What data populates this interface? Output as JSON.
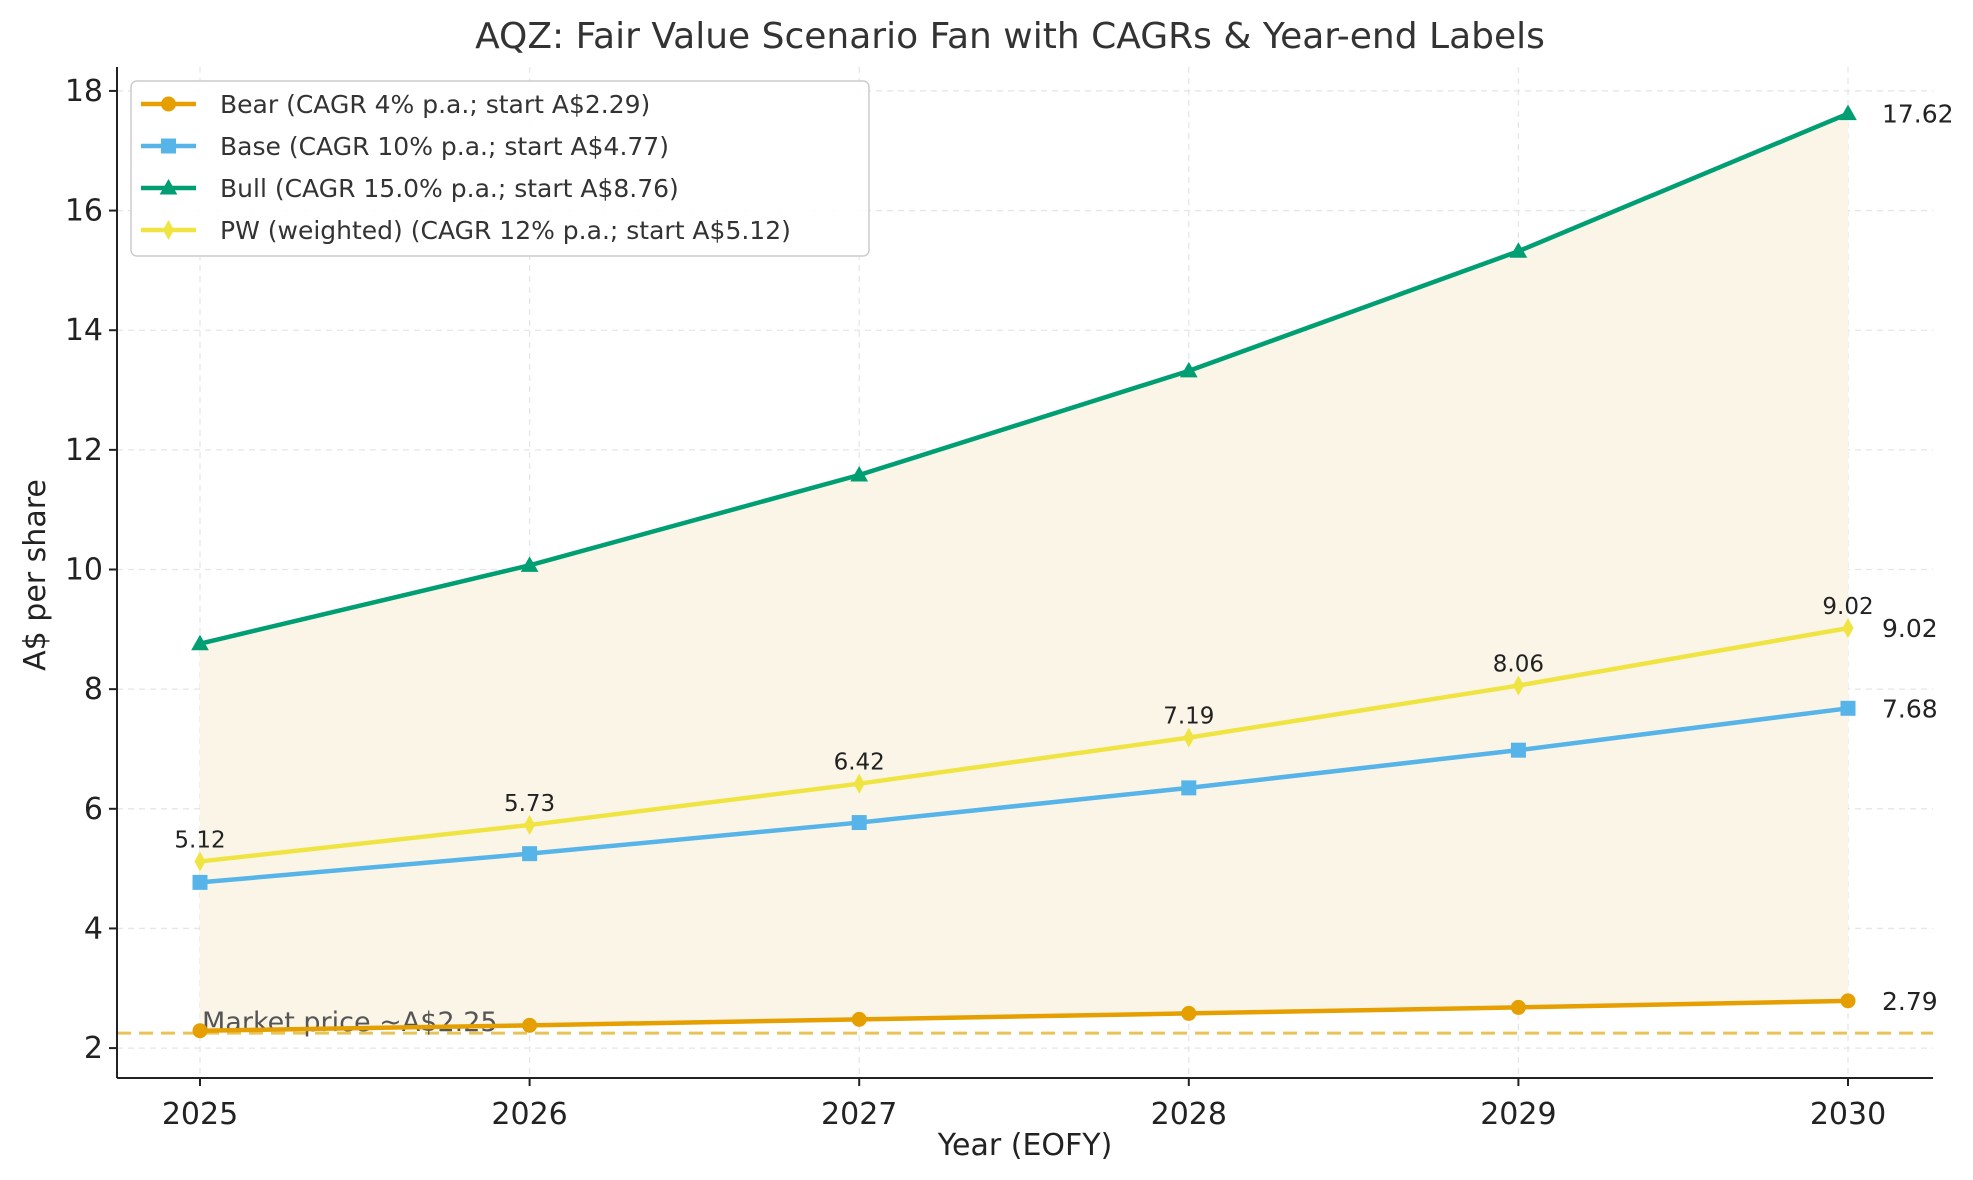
{
  "chart_data": {
    "type": "line",
    "title": "AQZ: Fair Value Scenario Fan with CAGRs & Year-end Labels",
    "xlabel": "Year (EOFY)",
    "ylabel": "A$ per share",
    "x": [
      2025,
      2026,
      2027,
      2028,
      2029,
      2030
    ],
    "x_tick_labels": [
      "2025",
      "2026",
      "2027",
      "2028",
      "2029",
      "2030"
    ],
    "ylim": [
      1.5,
      18.4
    ],
    "y_ticks": [
      2,
      4,
      6,
      8,
      10,
      12,
      14,
      16,
      18
    ],
    "y_tick_labels": [
      "2",
      "4",
      "6",
      "8",
      "10",
      "12",
      "14",
      "16",
      "18"
    ],
    "grid": true,
    "legend_position": "top-left",
    "series": [
      {
        "name": "Bear (CAGR 4% p.a.; start A$2.29)",
        "key": "bear",
        "color": "#E69F00",
        "marker": "circle",
        "values": [
          2.29,
          2.38,
          2.48,
          2.58,
          2.68,
          2.79
        ],
        "end_label": "2.79"
      },
      {
        "name": "Base (CAGR 10% p.a.; start A$4.77)",
        "key": "base",
        "color": "#56B4E9",
        "marker": "square",
        "values": [
          4.77,
          5.25,
          5.77,
          6.35,
          6.98,
          7.68
        ],
        "end_label": "7.68"
      },
      {
        "name": "Bull (CAGR 15.0% p.a.; start A$8.76)",
        "key": "bull",
        "color": "#009E73",
        "marker": "triangle",
        "values": [
          8.76,
          10.07,
          11.58,
          13.32,
          15.32,
          17.62
        ],
        "end_label": "17.62"
      },
      {
        "name": "PW (weighted) (CAGR 12% p.a.; start A$5.12)",
        "key": "pw",
        "color": "#F0E442",
        "marker": "diamond",
        "values": [
          5.12,
          5.73,
          6.42,
          7.19,
          8.06,
          9.02
        ],
        "end_label": "9.02",
        "point_labels": [
          "5.12",
          "5.73",
          "6.42",
          "7.19",
          "8.06",
          "9.02"
        ]
      }
    ],
    "fan_fill": {
      "between": [
        "bear",
        "bull"
      ],
      "color": "#FBF5E8"
    },
    "reference_line": {
      "value": 2.25,
      "label": "Market price ~A$2.25",
      "color": "#E8C457",
      "style": "dashed"
    }
  }
}
